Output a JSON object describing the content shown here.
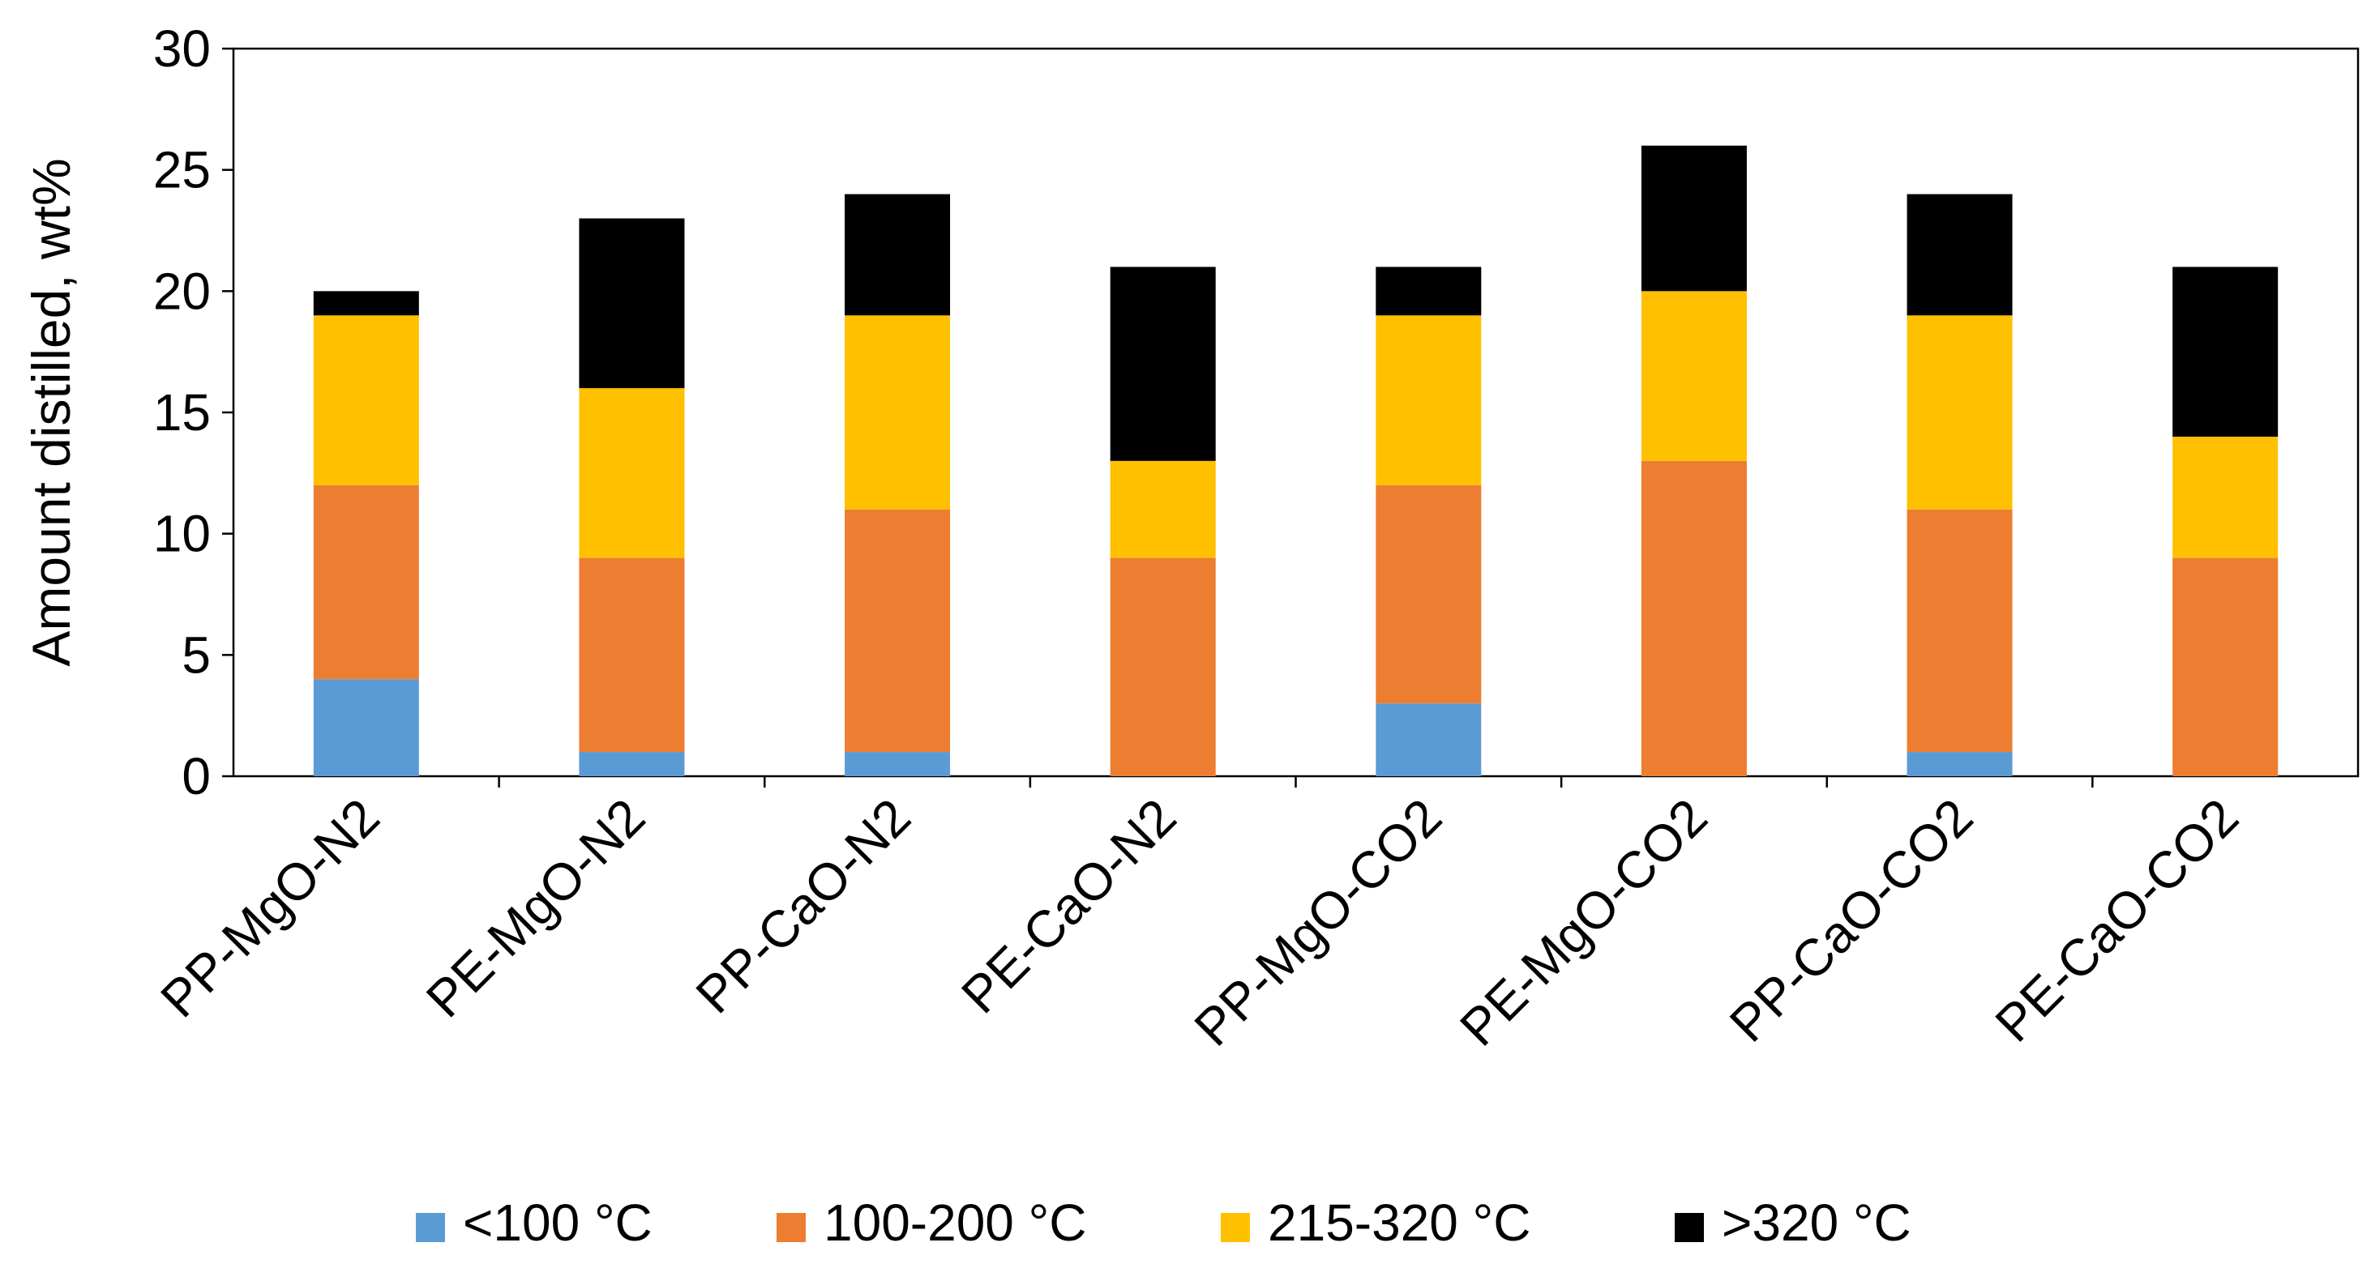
{
  "chart_data": {
    "type": "bar",
    "stacked": true,
    "title": "",
    "xlabel": "",
    "ylabel": "Amount distilled, wt%",
    "ylim": [
      0,
      30
    ],
    "yticks": [
      0,
      5,
      10,
      15,
      20,
      25,
      30
    ],
    "grid": false,
    "legend_position": "bottom",
    "categories": [
      "PP-MgO-N2",
      "PE-MgO-N2",
      "PP-CaO-N2",
      "PE-CaO-N2",
      "PP-MgO-CO2",
      "PE-MgO-CO2",
      "PP-CaO-CO2",
      "PE-CaO-CO2"
    ],
    "series": [
      {
        "name": "<100 °C",
        "color": "#5b9bd5",
        "values": [
          4,
          1,
          1,
          0,
          3,
          0,
          1,
          0
        ]
      },
      {
        "name": "100-200 °C",
        "color": "#ed7d31",
        "values": [
          8,
          8,
          10,
          9,
          9,
          13,
          10,
          9
        ]
      },
      {
        "name": "215-320 °C",
        "color": "#ffc000",
        "values": [
          7,
          7,
          8,
          4,
          7,
          7,
          8,
          5
        ]
      },
      {
        "name": ">320 °C",
        "color": "#000000",
        "values": [
          1,
          7,
          5,
          8,
          2,
          6,
          5,
          7
        ]
      }
    ]
  }
}
